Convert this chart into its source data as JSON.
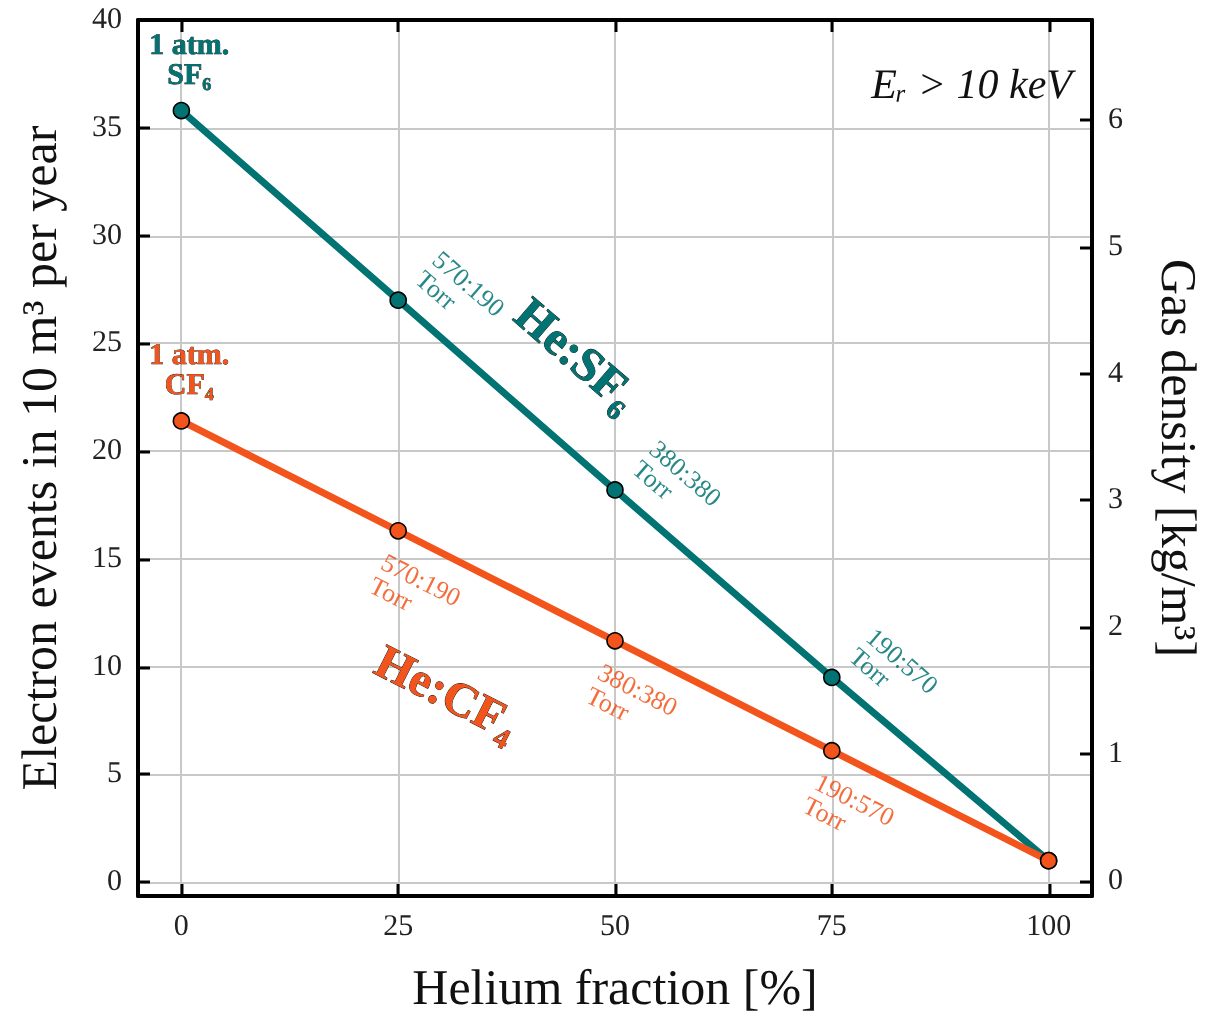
{
  "chart_data": {
    "type": "line",
    "xlabel": "Helium fraction [%]",
    "ylabel": "Electron events in 10 m³ per year",
    "y2label": "Gas density [kg/m³]",
    "x": [
      0,
      25,
      50,
      75,
      100
    ],
    "series": [
      {
        "name": "He:SF₆",
        "color": "#007372",
        "values": [
          35.8,
          27.0,
          18.2,
          9.5,
          1.0
        ]
      },
      {
        "name": "He:CF₄",
        "color": "#f2541b",
        "values": [
          21.4,
          16.3,
          11.2,
          6.1,
          1.0
        ]
      }
    ],
    "xlim": [
      -5,
      105
    ],
    "xticks": [
      0,
      25,
      50,
      75,
      100
    ],
    "ylim": [
      -0.64,
      40
    ],
    "yticks": [
      0,
      5,
      10,
      15,
      20,
      25,
      30,
      35,
      40
    ],
    "y2lim": [
      -0.12,
      6.79
    ],
    "y2ticks": [
      0,
      1,
      2,
      3,
      4,
      5,
      6
    ],
    "annotations": [
      {
        "text": "1 atm.\nSF₆",
        "x": 0,
        "y": 35.8
      },
      {
        "text": "570:190\nTorr",
        "x": 25,
        "y": 27.0
      },
      {
        "text": "380:380\nTorr",
        "x": 50,
        "y": 18.2
      },
      {
        "text": "190:570\nTorr",
        "x": 75,
        "y": 9.5
      },
      {
        "text": "1 atm.\nCF₄",
        "x": 0,
        "y": 21.4
      },
      {
        "text": "570:190\nTorr",
        "x": 25,
        "y": 16.3
      },
      {
        "text": "380:380\nTorr",
        "x": 50,
        "y": 11.2
      },
      {
        "text": "190:570\nTorr",
        "x": 75,
        "y": 6.1
      },
      "Eᵣ > 10 keV"
    ],
    "grid": true,
    "legend": false,
    "marker": "circle",
    "line_style": "solid"
  }
}
